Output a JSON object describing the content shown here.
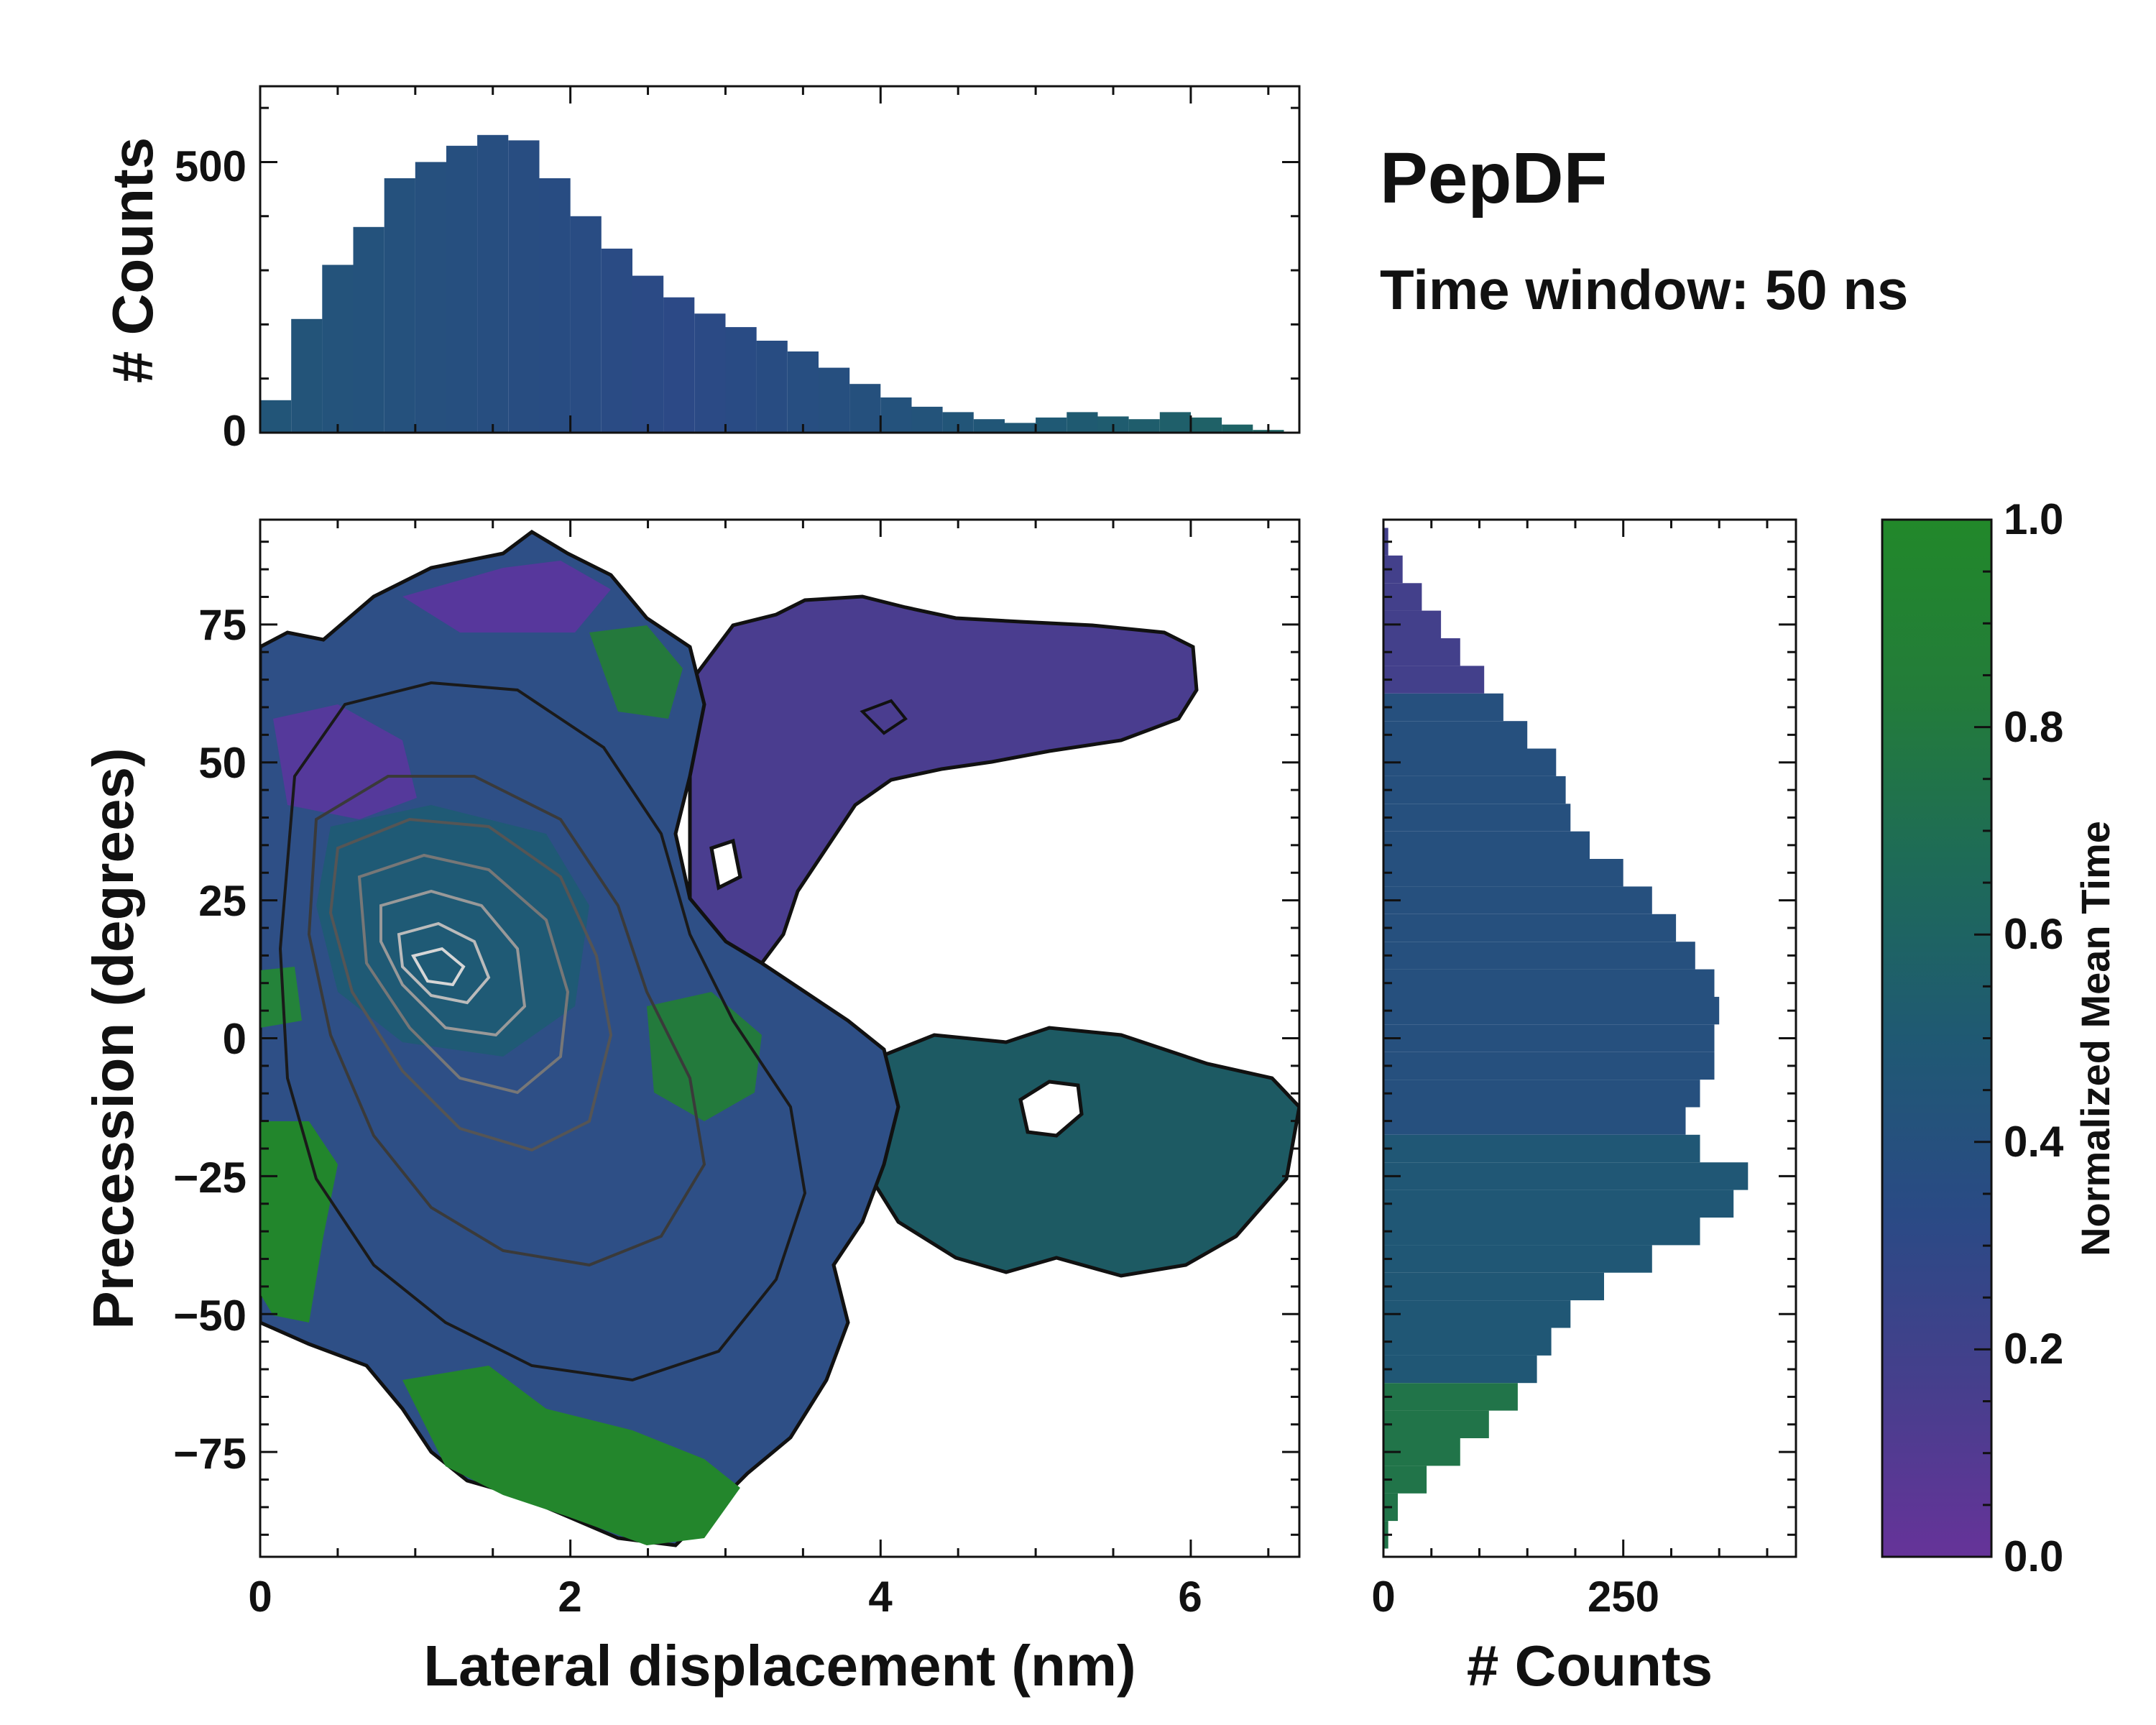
{
  "chart_data": {
    "type": "heatmap",
    "annotation": {
      "title": "PepDF",
      "subtitle": "Time window: 50 ns"
    },
    "main": {
      "xlabel": "Lateral displacement (nm)",
      "ylabel": "Precession (degrees)",
      "xlim": [
        0,
        6.7
      ],
      "ylim": [
        -94,
        94
      ],
      "xticks": [
        0,
        2,
        4,
        6
      ],
      "yticks": [
        -75,
        -50,
        -25,
        0,
        25,
        50,
        75
      ],
      "xtick_labels": [
        "0",
        "2",
        "4",
        "6"
      ],
      "ytick_labels": [
        "−75",
        "−50",
        "−25",
        "0",
        "25",
        "50",
        "75"
      ],
      "contours": true
    },
    "top_histogram": {
      "type": "bar",
      "ylabel": "# Counts",
      "ylim": [
        0,
        640
      ],
      "yticks": [
        0,
        500
      ],
      "ytick_labels": [
        "0",
        "500"
      ],
      "bin_centers_nm": [
        0.1,
        0.3,
        0.5,
        0.7,
        0.9,
        1.1,
        1.3,
        1.5,
        1.7,
        1.9,
        2.1,
        2.3,
        2.5,
        2.7,
        2.9,
        3.1,
        3.3,
        3.5,
        3.7,
        3.9,
        4.1,
        4.3,
        4.5,
        4.7,
        4.9,
        5.1,
        5.3,
        5.5,
        5.7,
        5.9,
        6.1,
        6.3,
        6.5
      ],
      "counts": [
        60,
        210,
        310,
        380,
        470,
        500,
        530,
        550,
        540,
        470,
        400,
        340,
        290,
        250,
        220,
        195,
        170,
        150,
        120,
        90,
        65,
        48,
        38,
        25,
        18,
        28,
        38,
        30,
        25,
        38,
        28,
        15,
        5
      ]
    },
    "right_histogram": {
      "type": "bar",
      "orientation": "horizontal",
      "xlabel": "# Counts",
      "xlim": [
        0,
        430
      ],
      "xticks": [
        0,
        250
      ],
      "xtick_labels": [
        "0",
        "250"
      ],
      "bin_centers_deg": [
        -90,
        -85,
        -80,
        -75,
        -70,
        -65,
        -60,
        -55,
        -50,
        -45,
        -40,
        -35,
        -30,
        -25,
        -20,
        -15,
        -10,
        -5,
        0,
        5,
        10,
        15,
        20,
        25,
        30,
        35,
        40,
        45,
        50,
        55,
        60,
        65,
        70,
        75,
        80,
        85,
        90
      ],
      "counts": [
        5,
        15,
        45,
        80,
        110,
        140,
        160,
        175,
        195,
        230,
        280,
        330,
        365,
        380,
        330,
        315,
        330,
        345,
        345,
        350,
        345,
        325,
        305,
        280,
        250,
        215,
        195,
        190,
        180,
        150,
        125,
        105,
        80,
        60,
        40,
        20,
        5
      ]
    },
    "colorbar": {
      "label": "Normalized Mean Time",
      "range": [
        0.0,
        1.0
      ],
      "ticks": [
        0.0,
        0.2,
        0.4,
        0.6,
        0.8,
        1.0
      ],
      "tick_labels": [
        "0.0",
        "0.2",
        "0.4",
        "0.6",
        "0.8",
        "1.0"
      ],
      "colors": [
        "#663399",
        "#453f8c",
        "#2a4a85",
        "#1f5973",
        "#1e6b57",
        "#237c3a",
        "#22882a"
      ]
    }
  }
}
